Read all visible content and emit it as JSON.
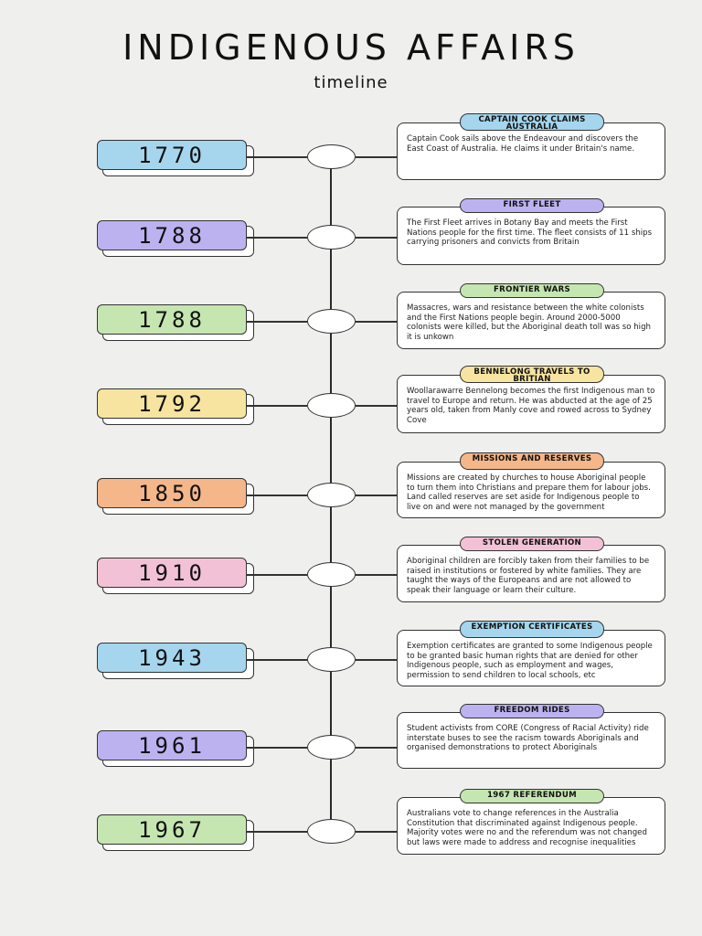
{
  "title": "INDIGENOUS AFFAIRS",
  "subtitle": "timeline",
  "colors": {
    "blue": "#a5d6ee",
    "purple": "#bdb2f0",
    "green": "#c5e6b0",
    "yellow": "#f6e4a0",
    "orange": "#f5b689",
    "pink": "#f3c1d6"
  },
  "events": [
    {
      "year": "1770",
      "color": "blue",
      "heading": "CAPTAIN COOK CLAIMS AUSTRALIA",
      "text": "Captain Cook sails above the Endeavour and discovers the East Coast of Australia. He claims it under Britain's name."
    },
    {
      "year": "1788",
      "color": "purple",
      "heading": "FIRST FLEET",
      "text": "The First Fleet arrives in Botany Bay and meets the First Nations people for the first time. The fleet consists of 11 ships carrying prisoners and convicts from Britain"
    },
    {
      "year": "1788",
      "color": "green",
      "heading": "FRONTIER WARS",
      "text": "Massacres, wars and resistance between the white colonists and the First Nations people begin. Around 2000-5000 colonists were killed, but the Aboriginal death toll was so high it is unkown"
    },
    {
      "year": "1792",
      "color": "yellow",
      "heading": "BENNELONG TRAVELS TO BRITIAN",
      "text": "Woollarawarre Bennelong becomes the first Indigenous man to travel to Europe and return. He was abducted at the age of 25 years old, taken from Manly cove and rowed across to Sydney Cove"
    },
    {
      "year": "1850",
      "color": "orange",
      "heading": "MISSIONS AND RESERVES",
      "text": "Missions are created by churches to house Aboriginal people to turn them into Christians and prepare them for labour jobs. Land called reserves are set aside for Indigenous people to live on and were not managed by the government"
    },
    {
      "year": "1910",
      "color": "pink",
      "heading": "STOLEN GENERATION",
      "text": "Aboriginal children are forcibly taken from their families to be raised in institutions or fostered by white families. They are taught the ways of the Europeans and are not allowed to speak their language or learn their culture."
    },
    {
      "year": "1943",
      "color": "blue",
      "heading": "EXEMPTION CERTIFICATES",
      "text": "Exemption certificates are granted to some Indigenous people to be granted basic human rights that are denied for other Indigenous people, such as employment and wages, permission to send children to local schools, etc"
    },
    {
      "year": "1961",
      "color": "purple",
      "heading": "FREEDOM RIDES",
      "text": "Student activists from CORE (Congress of Racial Activity) ride interstate buses to see the racism towards Aboriginals and organised demonstrations to protect Aboriginals"
    },
    {
      "year": "1967",
      "color": "green",
      "heading": "1967 REFERENDUM",
      "text": "Australians vote to change references in the Australia Constitution that discriminated against Indigenous people. Majority votes were no and the referendum was not changed but laws were made to address and recognise inequalities"
    }
  ]
}
